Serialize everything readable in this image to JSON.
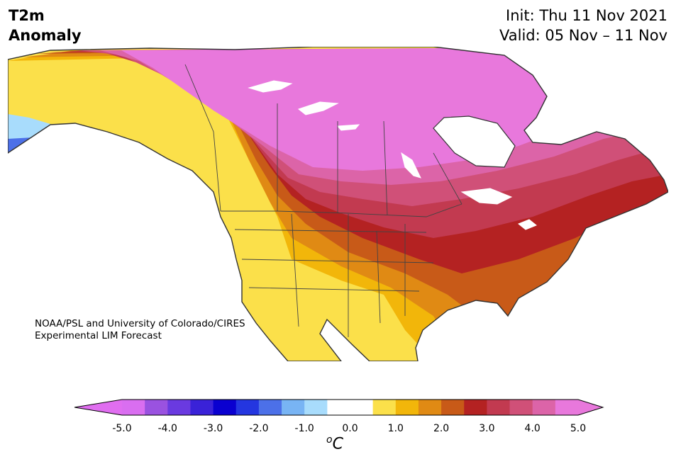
{
  "title": {
    "line1": "T2m",
    "line2": "Anomaly"
  },
  "init": {
    "line1": "Init: Thu 11 Nov 2021",
    "line2": "Valid: 05 Nov – 11 Nov"
  },
  "credit": {
    "line1": "NOAA/PSL and University of Colorado/CIRES",
    "line2": "Experimental LIM Forecast"
  },
  "colorbar": {
    "ticks": [
      "-5.0",
      "-4.0",
      "-3.0",
      "-2.0",
      "-1.0",
      "0.0",
      "1.0",
      "2.0",
      "3.0",
      "4.0",
      "5.0"
    ],
    "unit_base": "C",
    "unit_sup": "o",
    "colors": [
      "#d96ef0",
      "#9a52e0",
      "#6a3ae0",
      "#3a22d8",
      "#0a00d0",
      "#2436e0",
      "#4c70e8",
      "#78b4f4",
      "#a8dcfc",
      "#ffffff",
      "#ffffff",
      "#fbe04a",
      "#f2b60a",
      "#e08a14",
      "#c85a18",
      "#b42222",
      "#c23a50",
      "#d05078",
      "#dc64a8",
      "#e878dc"
    ],
    "under_color": "#e06ef0",
    "over_color": "#e878dc"
  },
  "map": {
    "ocean_color": "#ffffff",
    "land_outline_color": "#333333"
  }
}
